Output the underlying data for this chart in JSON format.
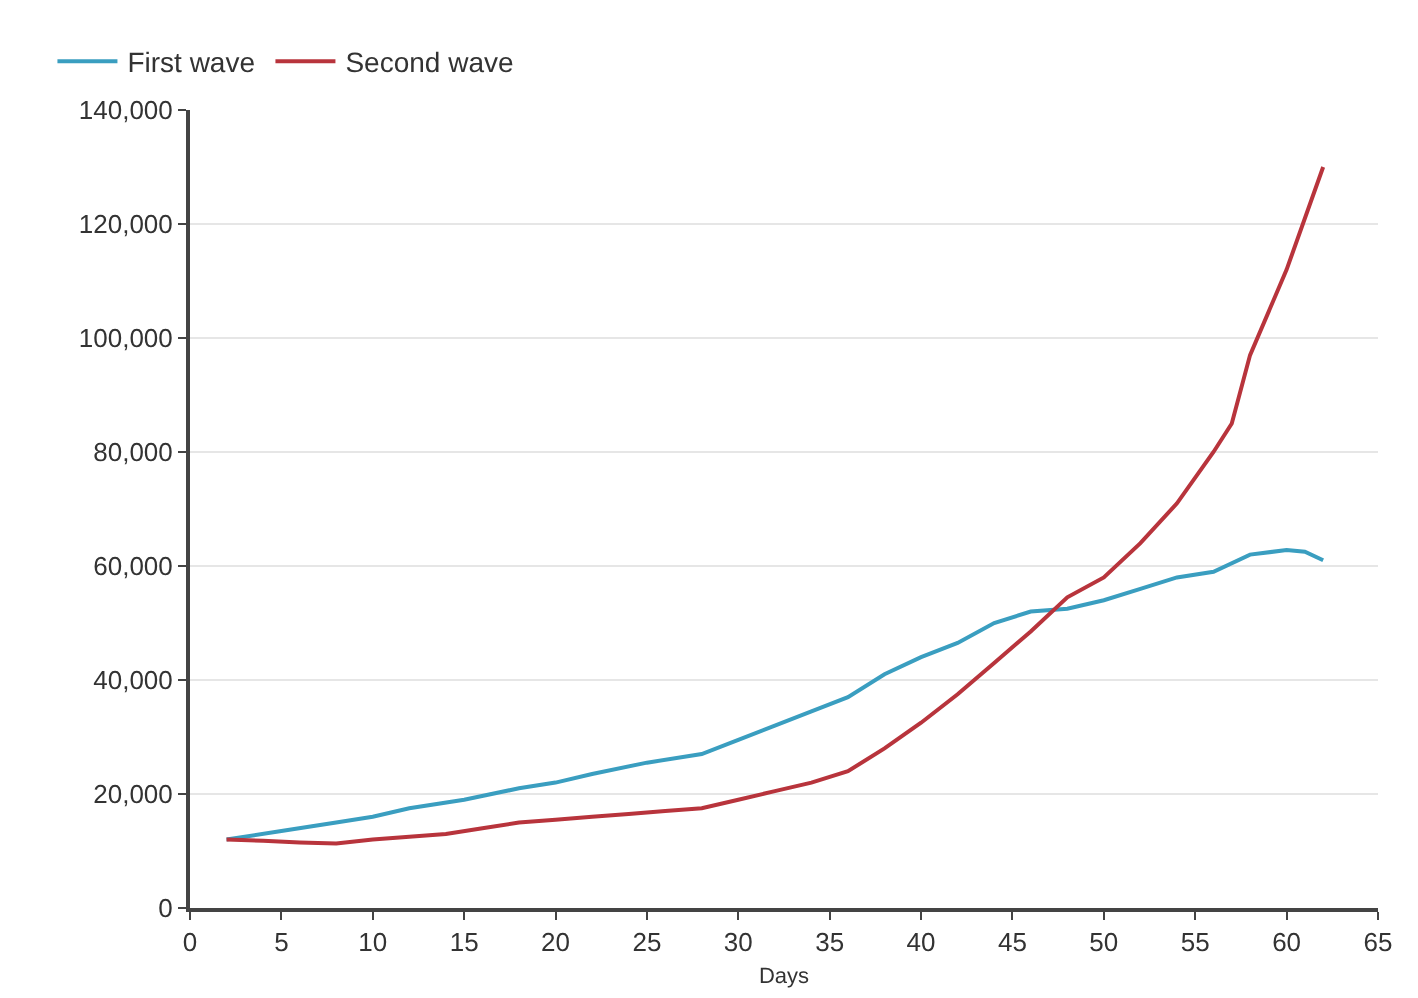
{
  "chart_data": {
    "type": "line",
    "xlabel": "Days",
    "legend": "top left",
    "grid": "y",
    "marker": "none",
    "line_style": "solid",
    "xlim": [
      0,
      65
    ],
    "xticks": [
      0,
      5,
      10,
      15,
      20,
      25,
      30,
      35,
      40,
      45,
      50,
      55,
      60,
      65
    ],
    "ylim": [
      0,
      140000
    ],
    "yticks": [
      {
        "value": 0,
        "label": "0"
      },
      {
        "value": 20000,
        "label": "20,000"
      },
      {
        "value": 40000,
        "label": "40,000"
      },
      {
        "value": 60000,
        "label": "60,000"
      },
      {
        "value": 80000,
        "label": "80,000"
      },
      {
        "value": 100000,
        "label": "100,000"
      },
      {
        "value": 120000,
        "label": "120,000"
      },
      {
        "value": 140000,
        "label": "140,000"
      }
    ],
    "series": [
      {
        "name": "First wave",
        "color": "#3a9ec0",
        "x": [
          2,
          5,
          8,
          10,
          12,
          15,
          18,
          20,
          22,
          25,
          28,
          30,
          32,
          34,
          36,
          38,
          40,
          42,
          44,
          46,
          48,
          50,
          52,
          54,
          56,
          58,
          60,
          61,
          62
        ],
        "values": [
          12000,
          13500,
          15000,
          16000,
          17500,
          19000,
          21000,
          22000,
          23500,
          25500,
          27000,
          29500,
          32000,
          34500,
          37000,
          41000,
          44000,
          46500,
          50000,
          52000,
          52500,
          54000,
          56000,
          58000,
          59000,
          62000,
          62800,
          62500,
          61000
        ]
      },
      {
        "name": "Second wave",
        "color": "#b8343c",
        "x": [
          2,
          4,
          6,
          8,
          10,
          12,
          14,
          16,
          18,
          20,
          22,
          24,
          26,
          28,
          30,
          32,
          34,
          36,
          38,
          40,
          42,
          44,
          46,
          48,
          50,
          52,
          54,
          56,
          57,
          58,
          60,
          62
        ],
        "values": [
          12000,
          11800,
          11500,
          11300,
          12000,
          12500,
          13000,
          14000,
          15000,
          15500,
          16000,
          16500,
          17000,
          17500,
          19000,
          20500,
          22000,
          24000,
          28000,
          32500,
          37500,
          43000,
          48500,
          54500,
          58000,
          64000,
          71000,
          80000,
          85000,
          97000,
          112000,
          130000
        ]
      }
    ]
  }
}
